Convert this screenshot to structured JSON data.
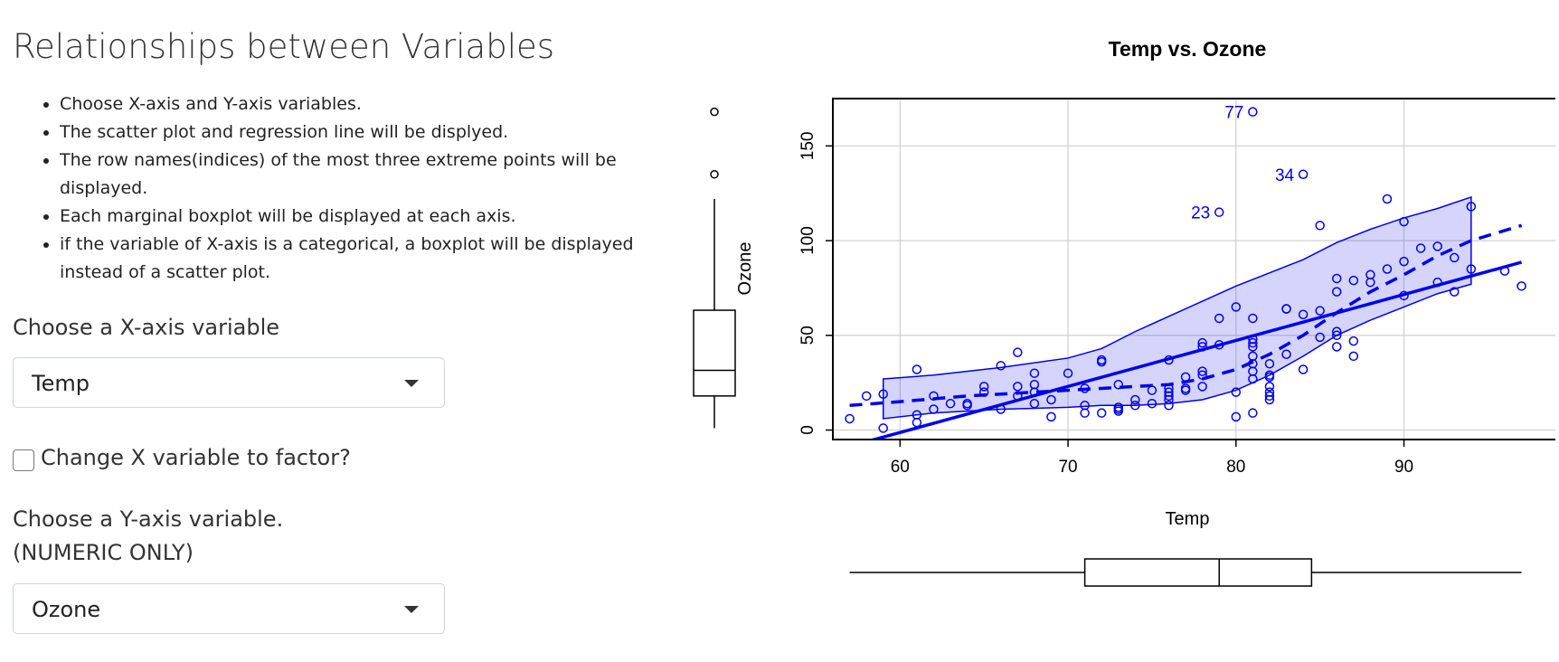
{
  "page": {
    "title": "Relationships between Variables",
    "bullets": [
      "Choose X-axis and Y-axis variables.",
      "The scatter plot and regression line will be displyed.",
      "The row names(indices) of the most three extreme points will be displayed.",
      "Each marginal boxplot will be displayed at each axis.",
      "if the variable of X-axis is a categorical, a boxplot will be displayed instead of a scatter plot."
    ]
  },
  "controls": {
    "x_label": "Choose a X-axis variable",
    "x_value": "Temp",
    "factor_label": "Change X variable to factor?",
    "factor_checked": false,
    "y_label": "Choose a Y-axis variable.(NUMERIC ONLY)",
    "y_value": "Ozone"
  },
  "chart_data": {
    "type": "scatter",
    "title": "Temp vs. Ozone",
    "xlabel": "Temp",
    "ylabel": "Ozone",
    "xlim": [
      56,
      99.5
    ],
    "ylim": [
      -5,
      175
    ],
    "xticks": [
      60,
      70,
      80,
      90
    ],
    "yticks": [
      0,
      50,
      100,
      150
    ],
    "grid": true,
    "color": "#0000ee",
    "points": [
      [
        57,
        6
      ],
      [
        58,
        18
      ],
      [
        59,
        19
      ],
      [
        59,
        1
      ],
      [
        61,
        32
      ],
      [
        61,
        8
      ],
      [
        61,
        4
      ],
      [
        62,
        18
      ],
      [
        62,
        11
      ],
      [
        63,
        14
      ],
      [
        64,
        13
      ],
      [
        64,
        14
      ],
      [
        65,
        23
      ],
      [
        65,
        20
      ],
      [
        66,
        11
      ],
      [
        66,
        34
      ],
      [
        67,
        23
      ],
      [
        67,
        41
      ],
      [
        67,
        18
      ],
      [
        68,
        14
      ],
      [
        68,
        20
      ],
      [
        68,
        24
      ],
      [
        68,
        30
      ],
      [
        69,
        16
      ],
      [
        69,
        7
      ],
      [
        70,
        30
      ],
      [
        71,
        9
      ],
      [
        71,
        13
      ],
      [
        71,
        22
      ],
      [
        72,
        9
      ],
      [
        72,
        36
      ],
      [
        72,
        37
      ],
      [
        73,
        10
      ],
      [
        73,
        11
      ],
      [
        73,
        12
      ],
      [
        73,
        24
      ],
      [
        74,
        13
      ],
      [
        74,
        16
      ],
      [
        75,
        21
      ],
      [
        75,
        14
      ],
      [
        76,
        13
      ],
      [
        76,
        16
      ],
      [
        76,
        18
      ],
      [
        76,
        20
      ],
      [
        76,
        22
      ],
      [
        76,
        37
      ],
      [
        77,
        21
      ],
      [
        77,
        22
      ],
      [
        77,
        28
      ],
      [
        78,
        23
      ],
      [
        78,
        29
      ],
      [
        78,
        31
      ],
      [
        78,
        44
      ],
      [
        78,
        46
      ],
      [
        79,
        45
      ],
      [
        79,
        59
      ],
      [
        79,
        115
      ],
      [
        80,
        7
      ],
      [
        80,
        20
      ],
      [
        80,
        65
      ],
      [
        81,
        9
      ],
      [
        81,
        27
      ],
      [
        81,
        31
      ],
      [
        81,
        35
      ],
      [
        81,
        39
      ],
      [
        81,
        44
      ],
      [
        81,
        46
      ],
      [
        81,
        48
      ],
      [
        81,
        59
      ],
      [
        81,
        168
      ],
      [
        82,
        16
      ],
      [
        82,
        18
      ],
      [
        82,
        20
      ],
      [
        82,
        23
      ],
      [
        82,
        28
      ],
      [
        82,
        29
      ],
      [
        82,
        35
      ],
      [
        83,
        40
      ],
      [
        83,
        64
      ],
      [
        83,
        64
      ],
      [
        84,
        32
      ],
      [
        84,
        61
      ],
      [
        84,
        135
      ],
      [
        85,
        49
      ],
      [
        85,
        63
      ],
      [
        85,
        108
      ],
      [
        86,
        44
      ],
      [
        86,
        50
      ],
      [
        86,
        52
      ],
      [
        86,
        73
      ],
      [
        86,
        80
      ],
      [
        87,
        39
      ],
      [
        87,
        47
      ],
      [
        87,
        79
      ],
      [
        88,
        78
      ],
      [
        88,
        82
      ],
      [
        89,
        85
      ],
      [
        89,
        122
      ],
      [
        90,
        71
      ],
      [
        90,
        89
      ],
      [
        90,
        110
      ],
      [
        91,
        96
      ],
      [
        92,
        78
      ],
      [
        92,
        97
      ],
      [
        93,
        73
      ],
      [
        93,
        91
      ],
      [
        94,
        85
      ],
      [
        94,
        118
      ],
      [
        96,
        84
      ],
      [
        97,
        76
      ]
    ],
    "labels": [
      {
        "text": "77",
        "x": 81,
        "y": 168
      },
      {
        "text": "34",
        "x": 84,
        "y": 135
      },
      {
        "text": "23",
        "x": 79,
        "y": 115
      }
    ],
    "regression": {
      "slope": 2.4287,
      "intercept": -146.9955
    },
    "smooth": [
      [
        57,
        13
      ],
      [
        60,
        15
      ],
      [
        64,
        18
      ],
      [
        68,
        20
      ],
      [
        72,
        22
      ],
      [
        76,
        24
      ],
      [
        78,
        27
      ],
      [
        80,
        32
      ],
      [
        82,
        40
      ],
      [
        84,
        50
      ],
      [
        86,
        62
      ],
      [
        88,
        73
      ],
      [
        90,
        82
      ],
      [
        92,
        92
      ],
      [
        94,
        100
      ],
      [
        97,
        108
      ]
    ],
    "band_upper": [
      [
        59,
        27
      ],
      [
        62,
        29
      ],
      [
        66,
        33
      ],
      [
        70,
        38
      ],
      [
        72,
        43
      ],
      [
        74,
        52
      ],
      [
        76,
        60
      ],
      [
        78,
        68
      ],
      [
        80,
        76
      ],
      [
        82,
        83
      ],
      [
        84,
        90
      ],
      [
        86,
        99
      ],
      [
        88,
        106
      ],
      [
        90,
        112
      ],
      [
        92,
        117
      ],
      [
        94,
        123
      ]
    ],
    "band_lower": [
      [
        59,
        6
      ],
      [
        62,
        9
      ],
      [
        66,
        11
      ],
      [
        70,
        12
      ],
      [
        72,
        13
      ],
      [
        74,
        13
      ],
      [
        76,
        14
      ],
      [
        78,
        16
      ],
      [
        80,
        21
      ],
      [
        82,
        29
      ],
      [
        84,
        39
      ],
      [
        86,
        50
      ],
      [
        88,
        58
      ],
      [
        90,
        65
      ],
      [
        92,
        72
      ],
      [
        94,
        77
      ]
    ],
    "x_boxplot": {
      "min": 57,
      "q1": 71,
      "median": 79,
      "q3": 84.5,
      "max": 97
    },
    "y_boxplot": {
      "min": 1,
      "q1": 18,
      "median": 31.5,
      "q3": 63.25,
      "max": 122,
      "outliers": [
        135,
        168
      ]
    }
  }
}
